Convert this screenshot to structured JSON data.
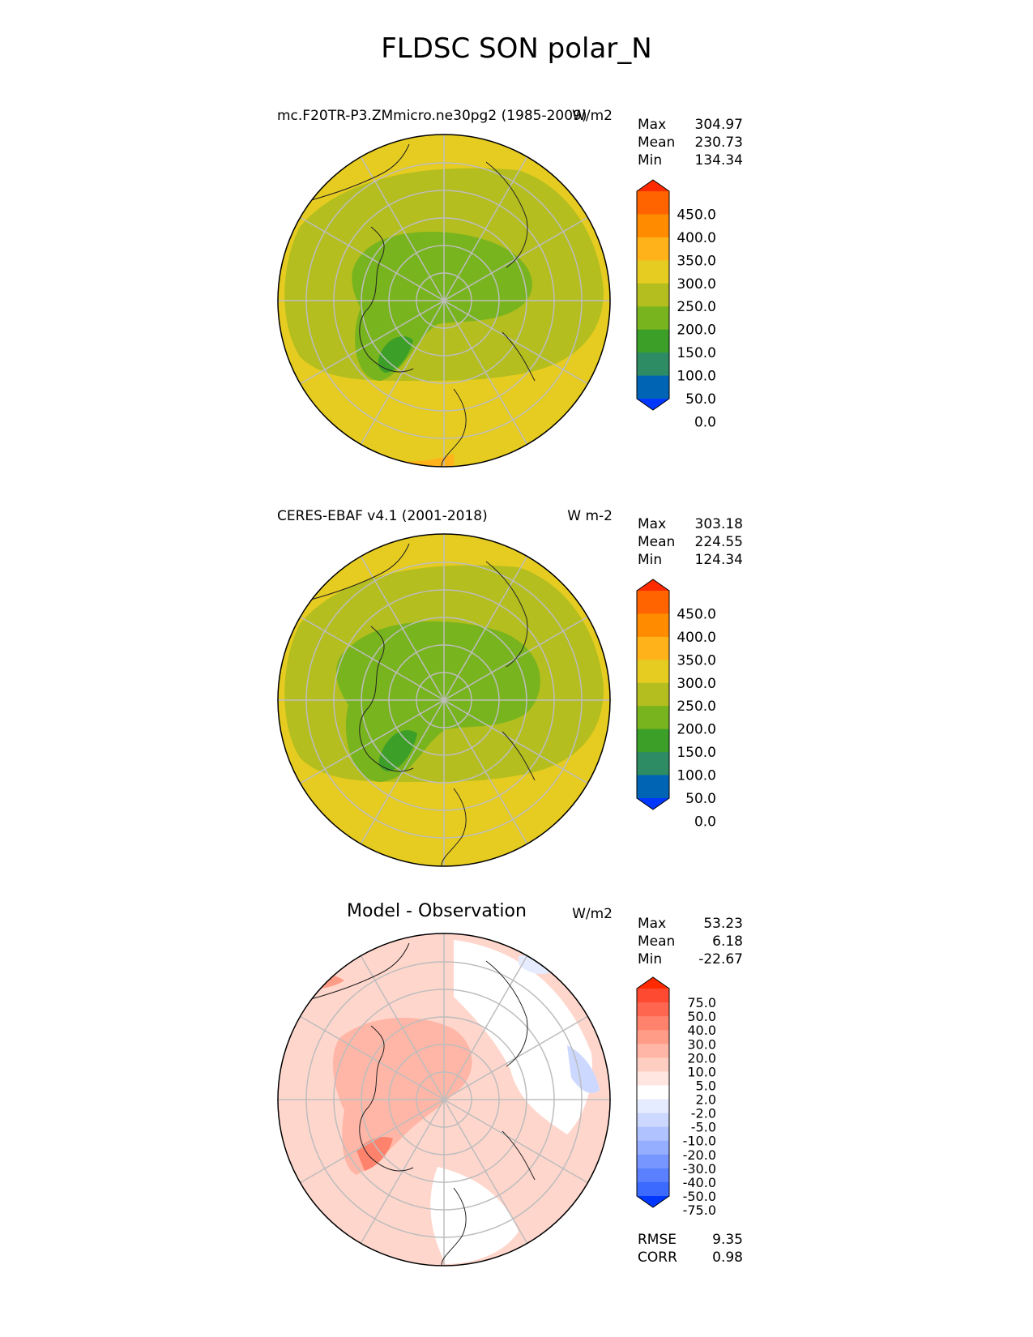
{
  "figure": {
    "title": "FLDSC SON polar_N"
  },
  "panels": [
    {
      "id": "model",
      "title": "mc.F20TR-P3.ZMmicro.ne30pg2 (1985-2009)",
      "units": "W/m2",
      "stats": {
        "max_label": "Max",
        "max": "304.97",
        "mean_label": "Mean",
        "mean": "230.73",
        "min_label": "Min",
        "min": "134.34"
      },
      "colorbar": {
        "labels": [
          "450.0",
          "400.0",
          "350.0",
          "300.0",
          "250.0",
          "200.0",
          "150.0",
          "100.0",
          "50.0",
          "0.0"
        ],
        "colors": [
          "#ff2a00",
          "#ff6400",
          "#ff8c00",
          "#ffb219",
          "#e6cc20",
          "#b4be1e",
          "#78b41e",
          "#3ca028",
          "#2d8c64",
          "#0064b4",
          "#0037ff"
        ]
      }
    },
    {
      "id": "obs",
      "title": "CERES-EBAF v4.1 (2001-2018)",
      "units": "W m-2",
      "stats": {
        "max_label": "Max",
        "max": "303.18",
        "mean_label": "Mean",
        "mean": "224.55",
        "min_label": "Min",
        "min": "124.34"
      },
      "colorbar": {
        "labels": [
          "450.0",
          "400.0",
          "350.0",
          "300.0",
          "250.0",
          "200.0",
          "150.0",
          "100.0",
          "50.0",
          "0.0"
        ],
        "colors": [
          "#ff2a00",
          "#ff6400",
          "#ff8c00",
          "#ffb219",
          "#e6cc20",
          "#b4be1e",
          "#78b41e",
          "#3ca028",
          "#2d8c64",
          "#0064b4",
          "#0037ff"
        ]
      }
    },
    {
      "id": "diff",
      "title": "Model - Observation",
      "units": "W/m2",
      "stats": {
        "max_label": "Max",
        "max": "53.23",
        "mean_label": "Mean",
        "mean": "6.18",
        "min_label": "Min",
        "min": "-22.67"
      },
      "metrics": {
        "rmse_label": "RMSE",
        "rmse": "9.35",
        "corr_label": "CORR",
        "corr": "0.98"
      },
      "colorbar": {
        "labels": [
          "75.0",
          "50.0",
          "40.0",
          "30.0",
          "20.0",
          "10.0",
          "5.0",
          "2.0",
          "-2.0",
          "-5.0",
          "-10.0",
          "-20.0",
          "-30.0",
          "-40.0",
          "-50.0",
          "-75.0"
        ],
        "colors": [
          "#ff2a00",
          "#ff4a32",
          "#ff6650",
          "#ff826c",
          "#ff9c88",
          "#ffb6a6",
          "#ffcec2",
          "#ffe6e0",
          "#ffffff",
          "#e6ecff",
          "#ccd8ff",
          "#b0c2ff",
          "#96aeff",
          "#7896ff",
          "#5a80ff",
          "#3c6aff",
          "#0037ff"
        ]
      }
    }
  ]
}
